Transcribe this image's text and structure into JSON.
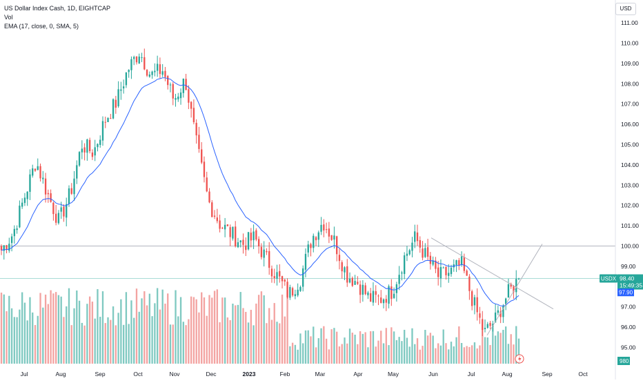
{
  "legend": {
    "symbol_line": "US Dollar Index Cash, 1D, EIGHTCAP",
    "vol_label": "Vol",
    "ema_line": "EMA (17, close, 0, SMA, 5)"
  },
  "currency_button": "USD",
  "price_tag": {
    "symbol": "USDX",
    "price": "98.40",
    "countdown": "15:49:35"
  },
  "ema_tag": "97.90",
  "volume_tag": "980",
  "colors": {
    "up": "#26a69a",
    "down": "#ef5350",
    "up_vol": "#7fc9c1",
    "down_vol": "#f3a3a1",
    "ema": "#2962ff",
    "line": "#b2b5be",
    "price_tag_bg": "#26a69a"
  },
  "icons": {
    "flash": "lightning-icon"
  },
  "chart_data": {
    "type": "candlestick",
    "y_axis": {
      "ticks": [
        "111.00",
        "110.00",
        "109.00",
        "108.00",
        "107.00",
        "106.00",
        "105.00",
        "104.00",
        "103.00",
        "102.00",
        "101.00",
        "100.00",
        "99.00",
        "98.00",
        "97.00",
        "96.00",
        "95.00"
      ],
      "ylim": [
        94.5,
        111.4
      ]
    },
    "x_axis": {
      "ticks": [
        "Jul",
        "Aug",
        "Sep",
        "Oct",
        "Nov",
        "Dec",
        "2023",
        "Feb",
        "Mar",
        "Apr",
        "May",
        "Jun",
        "Jul",
        "Aug",
        "Sep",
        "Oct"
      ]
    },
    "horizontal_line": 100.0,
    "last_price": 98.4,
    "ema_value": 97.9,
    "trendlines": [
      {
        "from": [
          "Jun",
          100.4
        ],
        "to": [
          "Aug+",
          97.2
        ]
      },
      {
        "from": [
          "Jul+",
          95.6
        ],
        "to": [
          "Aug+",
          100.1
        ]
      }
    ],
    "price_path": [
      [
        "Jul",
        99.8
      ],
      [
        "Jul",
        100.6
      ],
      [
        "Jul",
        102.4
      ],
      [
        "Jul",
        104.2
      ],
      [
        "Aug",
        102.6
      ],
      [
        "Aug",
        101.2
      ],
      [
        "Aug",
        102.6
      ],
      [
        "Aug",
        105.0
      ],
      [
        "Sep",
        104.6
      ],
      [
        "Sep",
        106.2
      ],
      [
        "Sep",
        107.1
      ],
      [
        "Sep",
        108.7
      ],
      [
        "Oct",
        109.6
      ],
      [
        "Oct",
        108.4
      ],
      [
        "Oct",
        108.7
      ],
      [
        "Nov",
        107.2
      ],
      [
        "Nov",
        108.2
      ],
      [
        "Nov",
        104.9
      ],
      [
        "Nov",
        102.2
      ],
      [
        "Dec",
        101.1
      ],
      [
        "Dec",
        100.6
      ],
      [
        "Dec",
        100.1
      ],
      [
        "Dec",
        100.4
      ],
      [
        "2023",
        99.4
      ],
      [
        "2023",
        98.5
      ],
      [
        "2023",
        97.6
      ],
      [
        "Feb",
        98.4
      ],
      [
        "Feb",
        100.4
      ],
      [
        "Mar",
        101.2
      ],
      [
        "Mar",
        100.2
      ],
      [
        "Mar",
        98.6
      ],
      [
        "Apr",
        98.2
      ],
      [
        "Apr",
        97.4
      ],
      [
        "Apr",
        97.4
      ],
      [
        "May",
        97.8
      ],
      [
        "May",
        99.4
      ],
      [
        "Jun",
        100.4
      ],
      [
        "Jun",
        99.4
      ],
      [
        "Jun",
        98.5
      ],
      [
        "Jul",
        98.7
      ],
      [
        "Jul",
        99.1
      ],
      [
        "Jul",
        97.3
      ],
      [
        "Jul",
        95.7
      ],
      [
        "Jul+",
        96.4
      ],
      [
        "Aug",
        97.6
      ],
      [
        "Aug",
        98.4
      ]
    ],
    "volume_range": [
      0,
      1000
    ],
    "last_volume": 980
  }
}
